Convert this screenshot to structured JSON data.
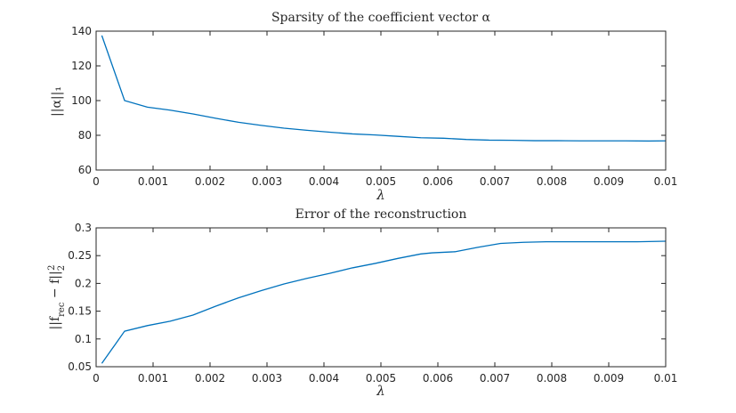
{
  "chart_data": [
    {
      "type": "line",
      "title": "Sparsity of the coefficient vector α",
      "xlabel": "λ",
      "ylabel": "||α||₁",
      "xlim": [
        0,
        0.01
      ],
      "ylim": [
        60,
        140
      ],
      "x_ticks": [
        "0",
        "0.001",
        "0.002",
        "0.003",
        "0.004",
        "0.005",
        "0.006",
        "0.007",
        "0.008",
        "0.009",
        "0.01"
      ],
      "y_ticks": [
        "60",
        "80",
        "100",
        "120",
        "140"
      ],
      "grid": false,
      "color": "#0072BD",
      "series": [
        {
          "x": [
            0.0001,
            0.0005,
            0.0009,
            0.0013,
            0.0017,
            0.0021,
            0.0025,
            0.0029,
            0.0033,
            0.0037,
            0.0041,
            0.0045,
            0.0049,
            0.0053,
            0.0057,
            0.0061,
            0.0065,
            0.0069,
            0.0073,
            0.0077,
            0.0081,
            0.0085,
            0.0089,
            0.0093,
            0.0097,
            0.01
          ],
          "values": [
            137.5,
            100,
            96.2,
            94.5,
            92.3,
            89.8,
            87.5,
            85.7,
            84.1,
            82.9,
            81.8,
            80.8,
            80.2,
            79.4,
            78.6,
            78.3,
            77.6,
            77.2,
            77.1,
            76.9,
            76.9,
            76.8,
            76.8,
            76.8,
            76.7,
            76.8
          ]
        }
      ]
    },
    {
      "type": "line",
      "title": "Error of the reconstruction",
      "xlabel": "λ",
      "ylabel": "||f_rec − f||₂²",
      "ylabel_parts": {
        "prefix": "||f",
        "sub": "rec",
        "middle": " − f||",
        "sub2": "2",
        "sup": "2"
      },
      "xlim": [
        0,
        0.01
      ],
      "ylim": [
        0.05,
        0.3
      ],
      "x_ticks": [
        "0",
        "0.001",
        "0.002",
        "0.003",
        "0.004",
        "0.005",
        "0.006",
        "0.007",
        "0.008",
        "0.009",
        "0.01"
      ],
      "y_ticks": [
        "0.05",
        "0.1",
        "0.15",
        "0.2",
        "0.25",
        "0.3"
      ],
      "grid": false,
      "color": "#0072BD",
      "series": [
        {
          "x": [
            0.0001,
            0.0005,
            0.0009,
            0.0013,
            0.0017,
            0.0021,
            0.0025,
            0.0029,
            0.0033,
            0.0037,
            0.0041,
            0.0045,
            0.0049,
            0.0053,
            0.0057,
            0.0059,
            0.0063,
            0.0067,
            0.0071,
            0.0075,
            0.0079,
            0.0083,
            0.0087,
            0.0091,
            0.0095,
            0.01
          ],
          "values": [
            0.056,
            0.114,
            0.124,
            0.132,
            0.143,
            0.159,
            0.174,
            0.187,
            0.199,
            0.209,
            0.218,
            0.228,
            0.236,
            0.245,
            0.253,
            0.255,
            0.257,
            0.265,
            0.272,
            0.274,
            0.275,
            0.275,
            0.275,
            0.275,
            0.275,
            0.276
          ]
        }
      ]
    }
  ]
}
